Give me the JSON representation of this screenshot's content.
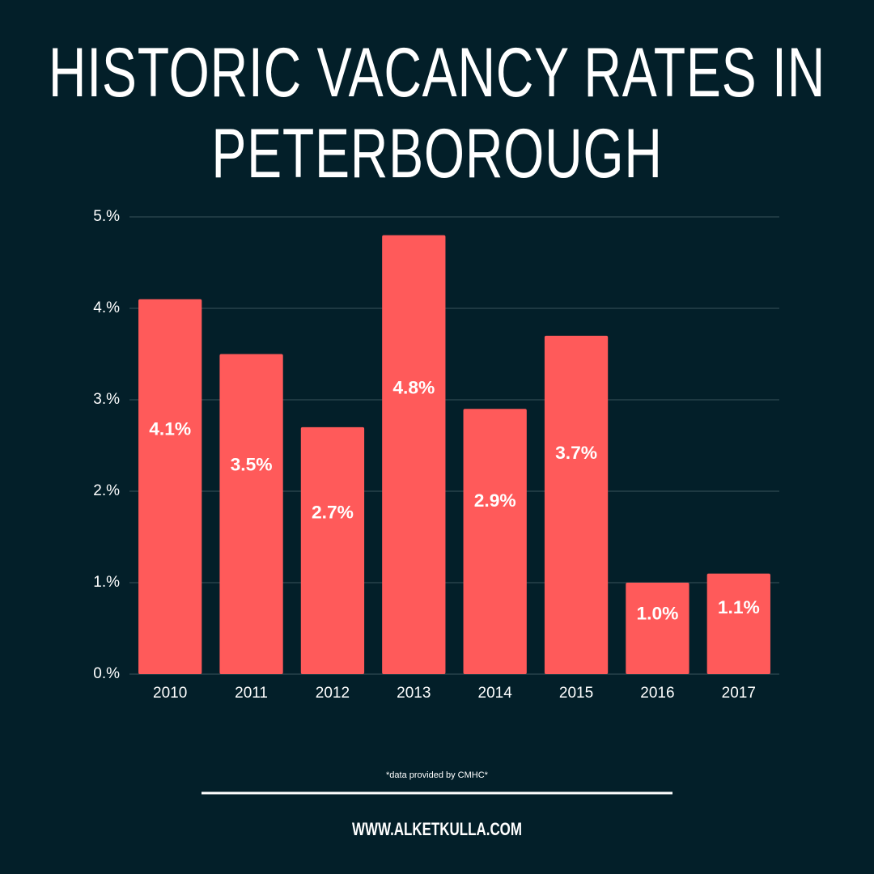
{
  "chart_data": {
    "type": "bar",
    "title": "HISTORIC VACANCY RATES IN PETERBOROUGH",
    "categories": [
      "2010",
      "2011",
      "2012",
      "2013",
      "2014",
      "2015",
      "2016",
      "2017"
    ],
    "values": [
      4.1,
      3.5,
      2.7,
      4.8,
      2.9,
      3.7,
      1.0,
      1.1
    ],
    "value_labels": [
      "4.1%",
      "3.5%",
      "2.7%",
      "4.8%",
      "2.9%",
      "3.7%",
      "1.0%",
      "1.1%"
    ],
    "color": "#ff5a5a",
    "ylim": [
      0,
      5
    ],
    "yticks": [
      {
        "value": 0,
        "label": "0.%"
      },
      {
        "value": 1,
        "label": "1.%"
      },
      {
        "value": 2,
        "label": "2.%"
      },
      {
        "value": 3,
        "label": "3.%"
      },
      {
        "value": 4,
        "label": "4.%"
      },
      {
        "value": 5,
        "label": "5.%"
      }
    ],
    "grid": true,
    "note": "*data provided by CMHC*",
    "footer": "WWW.ALKETKULLA.COM"
  }
}
